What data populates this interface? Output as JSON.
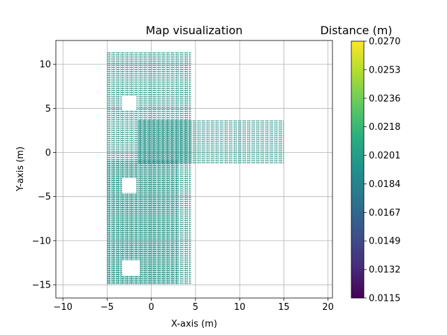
{
  "chart_data": {
    "type": "scatter",
    "title": "Map visualization",
    "xlabel": "X-axis (m)",
    "ylabel": "Y-axis (m)",
    "xlim": [
      -10.8,
      20.5
    ],
    "ylim": [
      -16.5,
      12.7
    ],
    "xticks": [
      -10,
      -5,
      0,
      5,
      10,
      15,
      20
    ],
    "yticks": [
      -15,
      -10,
      -5,
      0,
      5,
      10
    ],
    "xtick_labels": [
      "−10",
      "−5",
      "0",
      "5",
      "10",
      "15",
      "20"
    ],
    "ytick_labels": [
      "−15",
      "−10",
      "−5",
      "0",
      "5",
      "10"
    ],
    "grid": true,
    "series": [
      {
        "marker": "horizontal dash",
        "color": "#2a978c",
        "regions": [
          {
            "x": [
              -5.0,
              4.5
            ],
            "y": [
              -15.0,
              11.3
            ],
            "note": "vertical corridor, upper-left block"
          },
          {
            "x": [
              -5.0,
              3.0
            ],
            "y": [
              -15.0,
              -1.0
            ],
            "note": "vertical corridor, lower section"
          },
          {
            "x": [
              -1.5,
              15.0
            ],
            "y": [
              -1.3,
              3.6
            ],
            "note": "horizontal corridor"
          }
        ],
        "holes": [
          {
            "x": [
              -3.3,
              -1.7
            ],
            "y": [
              4.8,
              6.4
            ]
          },
          {
            "x": [
              -3.3,
              -1.7
            ],
            "y": [
              -4.6,
              -2.9
            ]
          },
          {
            "x": [
              -3.3,
              -1.3
            ],
            "y": [
              -14.0,
              -12.2
            ]
          }
        ]
      }
    ],
    "colorbar": {
      "title": "Distance (m)",
      "colormap": "viridis",
      "range": [
        0.0115,
        0.027
      ],
      "ticks": [
        "0.0270",
        "0.0253",
        "0.0236",
        "0.0218",
        "0.0201",
        "0.0184",
        "0.0167",
        "0.0149",
        "0.0132",
        "0.0115"
      ]
    }
  }
}
